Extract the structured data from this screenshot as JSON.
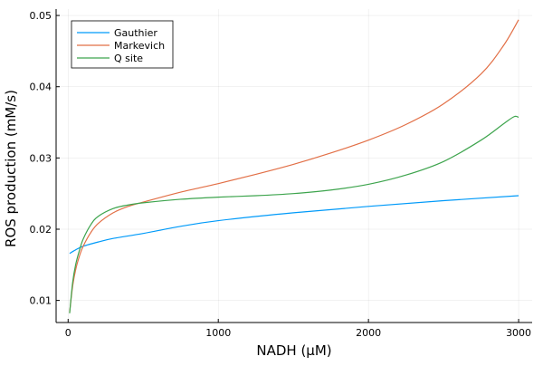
{
  "chart_data": {
    "type": "line",
    "title": "",
    "xlabel": "NADH (μM)",
    "ylabel": "ROS production (mM/s)",
    "xlim": [
      -80,
      3090
    ],
    "ylim": [
      0.0069,
      0.0509
    ],
    "xticks": [
      0,
      1000,
      2000,
      3000
    ],
    "xtick_labels": [
      "0",
      "1000",
      "2000",
      "3000"
    ],
    "yticks": [
      0.01,
      0.02,
      0.03,
      0.04,
      0.05
    ],
    "ytick_labels": [
      "0.01",
      "0.02",
      "0.03",
      "0.04",
      "0.05"
    ],
    "grid": true,
    "legend_position": "top-left",
    "series": [
      {
        "name": "Gauthier",
        "color": "#009af9",
        "x": [
          10,
          50,
          100,
          200,
          300,
          500,
          750,
          1000,
          1500,
          2000,
          2500,
          3000
        ],
        "y": [
          0.0166,
          0.0171,
          0.0176,
          0.0182,
          0.0187,
          0.0194,
          0.0204,
          0.0212,
          0.0223,
          0.0232,
          0.024,
          0.0247
        ]
      },
      {
        "name": "Markevich",
        "color": "#e26f46",
        "x": [
          10,
          30,
          50,
          75,
          100,
          150,
          200,
          300,
          400,
          500,
          750,
          1000,
          1250,
          1500,
          1750,
          2000,
          2250,
          2500,
          2750,
          2900,
          3000
        ],
        "y": [
          0.0083,
          0.012,
          0.0143,
          0.0162,
          0.0176,
          0.0195,
          0.0208,
          0.0223,
          0.0232,
          0.0238,
          0.0252,
          0.0264,
          0.0277,
          0.0291,
          0.0307,
          0.0325,
          0.0347,
          0.0376,
          0.0418,
          0.0458,
          0.0494
        ]
      },
      {
        "name": "Q site",
        "color": "#3da44d",
        "x": [
          10,
          30,
          50,
          75,
          100,
          150,
          200,
          300,
          400,
          500,
          750,
          1000,
          1250,
          1500,
          1750,
          2000,
          2250,
          2500,
          2750,
          2900,
          2970,
          3000
        ],
        "y": [
          0.0082,
          0.0125,
          0.015,
          0.017,
          0.0186,
          0.0206,
          0.0218,
          0.0229,
          0.0234,
          0.0237,
          0.0242,
          0.0245,
          0.0247,
          0.025,
          0.0255,
          0.0263,
          0.0276,
          0.0295,
          0.0325,
          0.0348,
          0.0358,
          0.0357
        ]
      }
    ]
  }
}
